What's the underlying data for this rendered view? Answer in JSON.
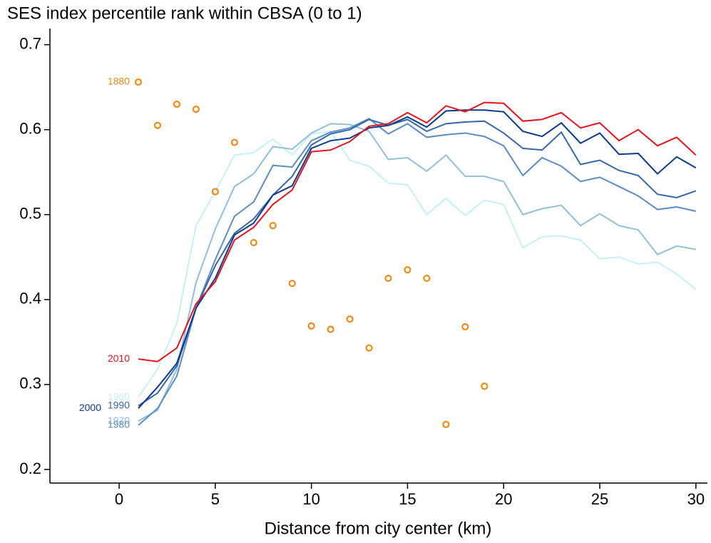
{
  "chart_data": {
    "type": "line",
    "title": "SES index percentile rank within CBSA (0 to 1)",
    "x_label": "Distance from city center (km)",
    "xlim": [
      -3.6,
      30.6
    ],
    "ylim": [
      0.184,
      0.719
    ],
    "xticks": [
      0,
      5,
      10,
      15,
      20,
      25,
      30
    ],
    "yticks": [
      0.2,
      0.3,
      0.4,
      0.5,
      0.6,
      0.7
    ],
    "grid": false,
    "x": [
      1,
      2,
      3,
      4,
      5,
      6,
      7,
      8,
      9,
      10,
      11,
      12,
      13,
      14,
      15,
      16,
      17,
      18,
      19,
      20,
      21,
      22,
      23,
      24,
      25,
      26,
      27,
      28,
      29,
      30
    ],
    "series": [
      {
        "name": "1960",
        "color": "#c4f1f6",
        "values": [
          0.285,
          0.318,
          0.372,
          0.487,
          0.527,
          0.57,
          0.573,
          0.589,
          0.57,
          0.595,
          0.598,
          0.564,
          0.557,
          0.537,
          0.535,
          0.5,
          0.519,
          0.499,
          0.517,
          0.512,
          0.461,
          0.474,
          0.475,
          0.47,
          0.448,
          0.45,
          0.442,
          0.444,
          0.43,
          0.412
        ]
      },
      {
        "name": "1970",
        "color": "#8fc0da",
        "values": [
          0.257,
          0.27,
          0.318,
          0.42,
          0.483,
          0.533,
          0.548,
          0.58,
          0.577,
          0.596,
          0.607,
          0.606,
          0.598,
          0.565,
          0.567,
          0.551,
          0.57,
          0.545,
          0.545,
          0.539,
          0.5,
          0.507,
          0.511,
          0.487,
          0.501,
          0.487,
          0.482,
          0.453,
          0.463,
          0.459
        ]
      },
      {
        "name": "1980",
        "color": "#5b8cc6",
        "values": [
          0.252,
          0.272,
          0.31,
          0.39,
          0.447,
          0.498,
          0.515,
          0.558,
          0.556,
          0.587,
          0.597,
          0.602,
          0.613,
          0.595,
          0.607,
          0.591,
          0.594,
          0.596,
          0.592,
          0.581,
          0.546,
          0.567,
          0.557,
          0.539,
          0.544,
          0.533,
          0.522,
          0.506,
          0.509,
          0.504
        ]
      },
      {
        "name": "1990",
        "color": "#3466aa",
        "values": [
          0.275,
          0.29,
          0.322,
          0.39,
          0.44,
          0.478,
          0.495,
          0.523,
          0.545,
          0.582,
          0.595,
          0.6,
          0.612,
          0.605,
          0.612,
          0.598,
          0.607,
          0.609,
          0.61,
          0.596,
          0.578,
          0.576,
          0.597,
          0.559,
          0.564,
          0.552,
          0.546,
          0.524,
          0.52,
          0.528
        ]
      },
      {
        "name": "2000",
        "color": "#0a3a8e",
        "values": [
          0.272,
          0.297,
          0.325,
          0.39,
          0.425,
          0.476,
          0.49,
          0.523,
          0.534,
          0.578,
          0.587,
          0.59,
          0.602,
          0.605,
          0.615,
          0.603,
          0.622,
          0.623,
          0.623,
          0.621,
          0.598,
          0.592,
          0.608,
          0.584,
          0.596,
          0.571,
          0.572,
          0.548,
          0.568,
          0.555
        ]
      },
      {
        "name": "2010",
        "color": "#e8141c",
        "values": [
          0.33,
          0.327,
          0.343,
          0.395,
          0.421,
          0.47,
          0.485,
          0.512,
          0.529,
          0.574,
          0.576,
          0.586,
          0.604,
          0.607,
          0.62,
          0.608,
          0.628,
          0.621,
          0.632,
          0.631,
          0.61,
          0.612,
          0.62,
          0.602,
          0.608,
          0.587,
          0.6,
          0.581,
          0.591,
          0.57
        ]
      },
      {
        "name": "1880",
        "type": "scatter",
        "color": "#f28a14",
        "x": [
          1,
          2,
          3,
          4,
          5,
          6,
          7,
          8,
          9,
          10,
          11,
          12,
          13,
          14,
          15,
          16,
          17,
          18,
          19
        ],
        "values": [
          0.656,
          0.605,
          0.63,
          0.624,
          0.527,
          0.585,
          0.467,
          0.487,
          0.419,
          0.369,
          0.365,
          0.377,
          0.343,
          0.425,
          0.435,
          0.425,
          0.253,
          0.368,
          0.298
        ]
      }
    ]
  }
}
